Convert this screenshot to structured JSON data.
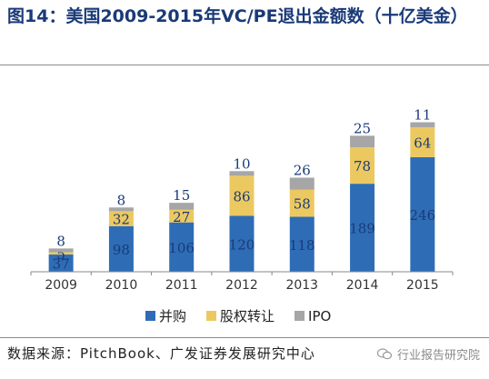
{
  "header": {
    "title": "图14：美国2009-2015年VC/PE退出金额数（十亿美金）"
  },
  "footer": {
    "source": "数据来源：PitchBook、广发证券发展研究中心",
    "watermark": "行业报告研究院"
  },
  "colors": {
    "title": "#1a3a78",
    "axis": "#888888"
  },
  "chart_data": {
    "type": "bar",
    "stacked": true,
    "categories": [
      "2009",
      "2010",
      "2011",
      "2012",
      "2013",
      "2014",
      "2015"
    ],
    "series": [
      {
        "name": "并购",
        "color": "#2e6db6",
        "label_color": "#1a3a78",
        "values": [
          37,
          98,
          106,
          120,
          118,
          189,
          246
        ]
      },
      {
        "name": "股权转让",
        "color": "#ecc960",
        "label_color": "#1a3a78",
        "values": [
          5,
          32,
          27,
          86,
          58,
          78,
          64
        ]
      },
      {
        "name": "IPO",
        "color": "#a6a6a6",
        "label_color": "#1a3a78",
        "values": [
          8,
          8,
          15,
          10,
          26,
          25,
          11
        ]
      }
    ],
    "ylim": [
      0,
      400
    ],
    "grid": false,
    "legend": "bottom"
  }
}
